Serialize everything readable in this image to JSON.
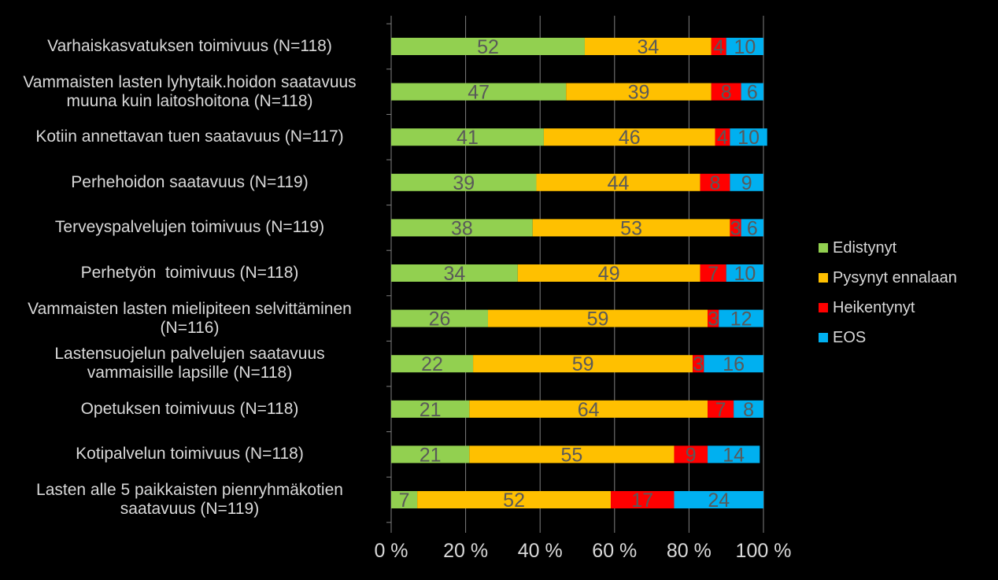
{
  "chart_data": {
    "type": "bar",
    "orientation": "horizontal",
    "stacked": "percent",
    "categories": [
      "Varhaiskasvatuksen toimivuus (N=118)",
      "Vammaisten lasten lyhytaik.hoidon saatavuus muuna kuin laitoshoitona (N=118)",
      "Kotiin annettavan tuen saatavuus (N=117)",
      "Perhehoidon saatavuus (N=119)",
      "Terveyspalvelujen toimivuus (N=119)",
      "Perhetyön  toimivuus (N=118)",
      "Vammaisten lasten mielipiteen selvittäminen (N=116)",
      "Lastensuojelun palvelujen saatavuus vammaisille lapsille (N=118)",
      "Opetuksen toimivuus (N=118)",
      "Kotipalvelun toimivuus (N=118)",
      "Lasten alle 5 paikkaisten pienryhmäkotien saatavuus (N=119)"
    ],
    "category_lines": [
      [
        "Varhaiskasvatuksen toimivuus (N=118)"
      ],
      [
        "Vammaisten lasten lyhytaik.hoidon saatavuus",
        "muuna kuin laitoshoitona (N=118)"
      ],
      [
        "Kotiin annettavan tuen saatavuus (N=117)"
      ],
      [
        "Perhehoidon saatavuus (N=119)"
      ],
      [
        "Terveyspalvelujen toimivuus (N=119)"
      ],
      [
        "Perhetyön  toimivuus (N=118)"
      ],
      [
        "Vammaisten lasten mielipiteen selvittäminen",
        "(N=116)"
      ],
      [
        "Lastensuojelun palvelujen saatavuus",
        "vammaisille lapsille (N=118)"
      ],
      [
        "Opetuksen toimivuus (N=118)"
      ],
      [
        "Kotipalvelun toimivuus (N=118)"
      ],
      [
        "Lasten alle 5 paikkaisten pienryhmäkotien",
        "saatavuus (N=119)"
      ]
    ],
    "series": [
      {
        "name": "Edistynyt",
        "color": "#92d050",
        "values": [
          52,
          47,
          41,
          39,
          38,
          34,
          26,
          22,
          21,
          21,
          7
        ]
      },
      {
        "name": "Pysynyt ennalaan",
        "color": "#ffc000",
        "values": [
          34,
          39,
          46,
          44,
          53,
          49,
          59,
          59,
          64,
          55,
          52
        ]
      },
      {
        "name": "Heikentynyt",
        "color": "#ff0000",
        "values": [
          4,
          8,
          4,
          8,
          3,
          7,
          3,
          3,
          7,
          9,
          17
        ]
      },
      {
        "name": "EOS",
        "color": "#00b0f0",
        "values": [
          10,
          6,
          10,
          9,
          6,
          10,
          12,
          16,
          8,
          14,
          24
        ]
      }
    ],
    "x_ticks": [
      "0 %",
      "20 %",
      "40 %",
      "60 %",
      "80 %",
      "100 %"
    ],
    "xlim": [
      0,
      100
    ],
    "grid": true,
    "legend_position": "right",
    "data_label_color": "#595959",
    "text_color": "#d9d9d9",
    "background": "#000000"
  }
}
